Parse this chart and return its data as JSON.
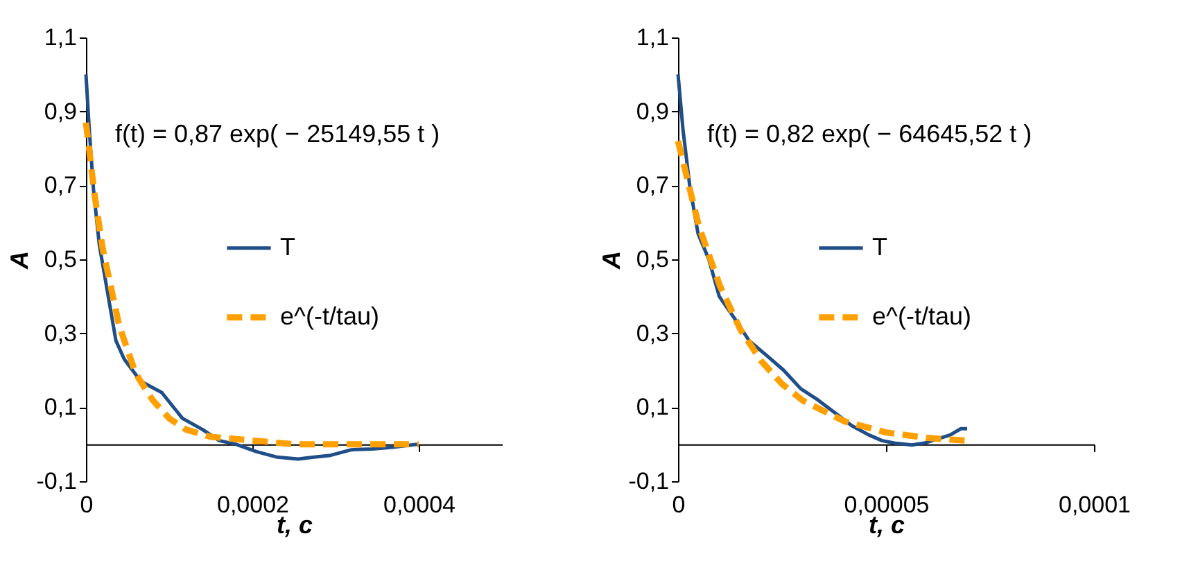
{
  "chart_data": [
    {
      "type": "line",
      "xlabel": "t, c",
      "ylabel": "A",
      "legend": "right",
      "annotations": [
        "f(t) = 0,87 exp( − 25149,55 t )"
      ],
      "xlim": [
        0,
        0.0005
      ],
      "xticks": [
        0,
        {
          "value": 0.0002,
          "label": "0,0002"
        },
        {
          "value": 0.0004,
          "label": "0,0004"
        }
      ],
      "ylim": [
        -0.1,
        1.1
      ],
      "yticks": [
        {
          "value": -0.1,
          "label": "-0,1"
        },
        {
          "value": 0.1,
          "label": "0,1"
        },
        {
          "value": 0.3,
          "label": "0,3"
        },
        {
          "value": 0.5,
          "label": "0,5"
        },
        {
          "value": 0.7,
          "label": "0,7"
        },
        {
          "value": 0.9,
          "label": "0,9"
        },
        {
          "value": 1.1,
          "label": "1,1"
        }
      ],
      "series": [
        {
          "name": "T",
          "color": "#1f4e89",
          "line_style": "solid",
          "x": [
            0,
            4e-06,
            9e-06,
            1.6e-05,
            2.6e-05,
            3.6e-05,
            4.6e-05,
            6.6e-05,
            9.1e-05,
            0.000116,
            0.00014,
            0.00016,
            0.00018,
            0.000205,
            0.00023,
            0.000255,
            0.000274,
            0.000294,
            0.000319,
            0.000344,
            0.000369,
            0.000398
          ],
          "values": [
            1.0,
            0.85,
            0.69,
            0.54,
            0.41,
            0.28,
            0.23,
            0.17,
            0.14,
            0.07,
            0.04,
            0.01,
            0.0,
            -0.02,
            -0.035,
            -0.04,
            -0.035,
            -0.03,
            -0.015,
            -0.013,
            -0.008,
            0.0
          ]
        },
        {
          "name": "e^(-t/tau)",
          "color": "#ff9f00",
          "line_style": "dashed",
          "x": [
            0,
            1e-05,
            2e-05,
            4e-05,
            6e-05,
            8e-05,
            0.0001,
            0.00012,
            0.00015,
            0.0002,
            0.00025,
            0.0003,
            0.00035,
            0.0004
          ],
          "values": [
            0.87,
            0.68,
            0.53,
            0.32,
            0.19,
            0.12,
            0.07,
            0.04,
            0.02,
            0.01,
            0.0,
            0.0,
            0.0,
            0.0
          ]
        }
      ]
    },
    {
      "type": "line",
      "xlabel": "t, c",
      "ylabel": "A",
      "legend": "right",
      "annotations": [
        "f(t) = 0,82 exp( − 64645,52 t )"
      ],
      "xlim": [
        0,
        0.0001
      ],
      "xticks": [
        0,
        {
          "value": 5e-05,
          "label": "0,00005"
        },
        {
          "value": 0.0001,
          "label": "0,0001"
        }
      ],
      "ylim": [
        -0.1,
        1.1
      ],
      "yticks": [
        {
          "value": -0.1,
          "label": "-0,1"
        },
        {
          "value": 0.1,
          "label": "0,1"
        },
        {
          "value": 0.3,
          "label": "0,3"
        },
        {
          "value": 0.5,
          "label": "0,5"
        },
        {
          "value": 0.7,
          "label": "0,7"
        },
        {
          "value": 0.9,
          "label": "0,9"
        },
        {
          "value": 1.1,
          "label": "1,1"
        }
      ],
      "series": [
        {
          "name": "T",
          "color": "#1f4e89",
          "line_style": "solid",
          "x": [
            0,
            1.2e-06,
            2.8e-06,
            4.8e-06,
            7.4e-06,
            9.9e-06,
            1.36e-05,
            1.71e-05,
            2.13e-05,
            2.54e-05,
            2.95e-05,
            3.36e-05,
            3.77e-05,
            4.18e-05,
            4.59e-05,
            4.9e-05,
            5.2e-05,
            5.62e-05,
            5.92e-05,
            6.23e-05,
            6.54e-05,
            6.8e-05,
            6.95e-05
          ],
          "values": [
            1.0,
            0.85,
            0.7,
            0.57,
            0.5,
            0.4,
            0.34,
            0.28,
            0.24,
            0.2,
            0.15,
            0.12,
            0.085,
            0.05,
            0.025,
            0.01,
            0.003,
            -0.002,
            0.003,
            0.014,
            0.025,
            0.042,
            0.042
          ]
        },
        {
          "name": "e^(-t/tau)",
          "color": "#ff9f00",
          "line_style": "dashed",
          "x": [
            0,
            5e-06,
            1e-05,
            1.5e-05,
            2e-05,
            2.5e-05,
            3e-05,
            4e-05,
            5e-05,
            6e-05,
            6.9e-05
          ],
          "values": [
            0.82,
            0.59,
            0.43,
            0.31,
            0.225,
            0.163,
            0.118,
            0.062,
            0.032,
            0.017,
            0.01
          ]
        }
      ]
    }
  ]
}
